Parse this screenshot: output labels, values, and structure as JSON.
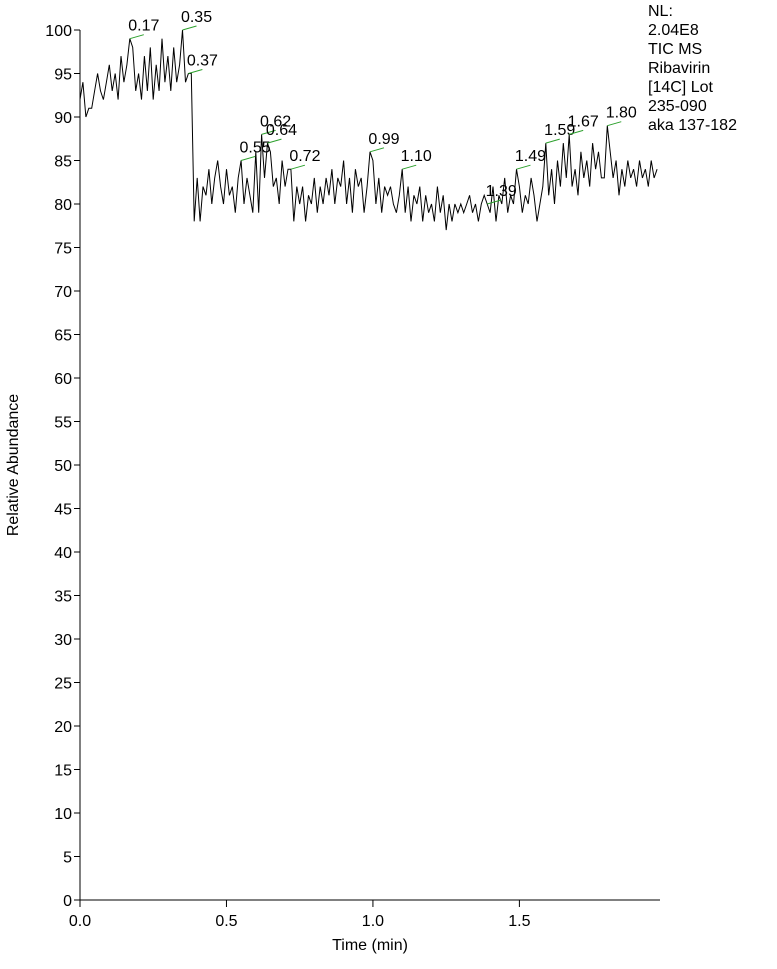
{
  "chart_data": {
    "type": "line",
    "x_label": "Time (min)",
    "y_label": "Relative Abundance",
    "info_lines": [
      "NL:",
      "2.04E8",
      "TIC  MS",
      "Ribavirin",
      "[14C] Lot",
      "235-090",
      "aka 137-182"
    ],
    "color": "#000000",
    "peak_color": "#2ca02c",
    "xlim": [
      0,
      1.98
    ],
    "ylim": [
      0,
      100
    ],
    "xticks": [
      {
        "value": 0,
        "label": "0.0"
      },
      0.5,
      {
        "value": 1,
        "label": "1.0"
      },
      1.5
    ],
    "yticks": [
      0,
      5,
      10,
      15,
      20,
      25,
      30,
      35,
      40,
      45,
      50,
      55,
      60,
      65,
      70,
      75,
      80,
      85,
      90,
      95,
      100
    ],
    "x": [
      0.0,
      0.01,
      0.02,
      0.03,
      0.04,
      0.05,
      0.06,
      0.07,
      0.08,
      0.09,
      0.1,
      0.11,
      0.12,
      0.13,
      0.14,
      0.15,
      0.16,
      0.17,
      0.18,
      0.19,
      0.2,
      0.21,
      0.22,
      0.23,
      0.24,
      0.25,
      0.26,
      0.27,
      0.28,
      0.29,
      0.3,
      0.31,
      0.32,
      0.33,
      0.34,
      0.35,
      0.36,
      0.37,
      0.38,
      0.39,
      0.4,
      0.41,
      0.42,
      0.43,
      0.44,
      0.45,
      0.46,
      0.47,
      0.48,
      0.49,
      0.5,
      0.51,
      0.52,
      0.53,
      0.54,
      0.55,
      0.56,
      0.57,
      0.58,
      0.59,
      0.6,
      0.61,
      0.62,
      0.63,
      0.64,
      0.65,
      0.66,
      0.67,
      0.68,
      0.69,
      0.7,
      0.71,
      0.72,
      0.73,
      0.74,
      0.75,
      0.76,
      0.77,
      0.78,
      0.79,
      0.8,
      0.81,
      0.82,
      0.83,
      0.84,
      0.85,
      0.86,
      0.87,
      0.88,
      0.89,
      0.9,
      0.91,
      0.92,
      0.93,
      0.94,
      0.95,
      0.96,
      0.97,
      0.98,
      0.99,
      1.0,
      1.01,
      1.02,
      1.03,
      1.04,
      1.05,
      1.06,
      1.07,
      1.08,
      1.09,
      1.1,
      1.11,
      1.12,
      1.13,
      1.14,
      1.15,
      1.16,
      1.17,
      1.18,
      1.19,
      1.2,
      1.21,
      1.22,
      1.23,
      1.24,
      1.25,
      1.26,
      1.27,
      1.28,
      1.29,
      1.3,
      1.31,
      1.32,
      1.33,
      1.34,
      1.35,
      1.36,
      1.37,
      1.38,
      1.39,
      1.4,
      1.41,
      1.42,
      1.43,
      1.44,
      1.45,
      1.46,
      1.47,
      1.48,
      1.49,
      1.5,
      1.51,
      1.52,
      1.53,
      1.54,
      1.55,
      1.56,
      1.57,
      1.58,
      1.59,
      1.6,
      1.61,
      1.62,
      1.63,
      1.64,
      1.65,
      1.66,
      1.67,
      1.68,
      1.69,
      1.7,
      1.71,
      1.72,
      1.73,
      1.74,
      1.75,
      1.76,
      1.77,
      1.78,
      1.79,
      1.8,
      1.81,
      1.82,
      1.83,
      1.84,
      1.85,
      1.86,
      1.87,
      1.88,
      1.89,
      1.9,
      1.91,
      1.92,
      1.93,
      1.94,
      1.95,
      1.96,
      1.97
    ],
    "values": [
      92,
      94,
      90,
      91,
      91,
      93,
      95,
      93,
      92,
      94,
      96,
      93,
      95,
      92,
      97,
      94,
      96,
      99,
      98,
      93,
      95,
      92,
      97,
      93,
      98,
      92,
      96,
      93,
      99,
      94,
      97,
      93,
      98,
      94,
      96,
      100,
      94,
      95,
      95,
      78,
      83,
      78,
      82,
      81,
      84,
      80,
      83,
      85,
      82,
      80,
      84,
      81,
      82,
      79,
      83,
      85,
      80,
      83,
      81,
      79,
      86,
      79,
      88,
      83,
      87,
      86,
      82,
      83,
      80,
      85,
      82,
      84,
      84,
      78,
      82,
      80,
      82,
      78,
      81,
      80,
      83,
      79,
      82,
      80,
      83,
      81,
      84,
      80,
      83,
      82,
      85,
      80,
      83,
      79,
      84,
      82,
      83,
      79,
      82,
      86,
      85,
      80,
      83,
      79,
      82,
      81,
      82,
      80,
      79,
      81,
      84,
      79,
      82,
      78,
      81,
      80,
      82,
      78,
      81,
      79,
      80,
      78,
      82,
      79,
      81,
      77,
      80,
      78,
      80,
      79,
      80,
      79,
      80,
      81,
      79,
      80,
      78,
      80,
      81,
      80,
      79,
      82,
      78,
      81,
      80,
      83,
      79,
      81,
      80,
      84,
      82,
      79,
      81,
      80,
      83,
      81,
      78,
      80,
      82,
      87,
      81,
      84,
      80,
      85,
      82,
      87,
      83,
      88,
      82,
      84,
      81,
      86,
      83,
      85,
      82,
      87,
      84,
      86,
      83,
      83,
      89,
      86,
      83,
      85,
      81,
      84,
      82,
      85,
      83,
      84,
      82,
      85,
      83,
      84,
      82,
      85,
      83,
      84
    ],
    "peaks": [
      {
        "time": 0.17,
        "abundance": 99
      },
      {
        "time": 0.35,
        "abundance": 100
      },
      {
        "time": 0.37,
        "abundance": 95
      },
      {
        "time": 0.55,
        "abundance": 85
      },
      {
        "time": 0.62,
        "abundance": 88
      },
      {
        "time": 0.64,
        "abundance": 87
      },
      {
        "time": 0.72,
        "abundance": 84
      },
      {
        "time": 0.99,
        "abundance": 86
      },
      {
        "time": {
          "value": 1.1,
          "label": "1.10"
        },
        "abundance": 84
      },
      {
        "time": 1.39,
        "abundance": 80
      },
      {
        "time": 1.49,
        "abundance": 84
      },
      {
        "time": 1.59,
        "abundance": 87
      },
      {
        "time": 1.67,
        "abundance": 88
      },
      {
        "time": {
          "value": 1.8,
          "label": "1.80"
        },
        "abundance": 89
      }
    ]
  }
}
